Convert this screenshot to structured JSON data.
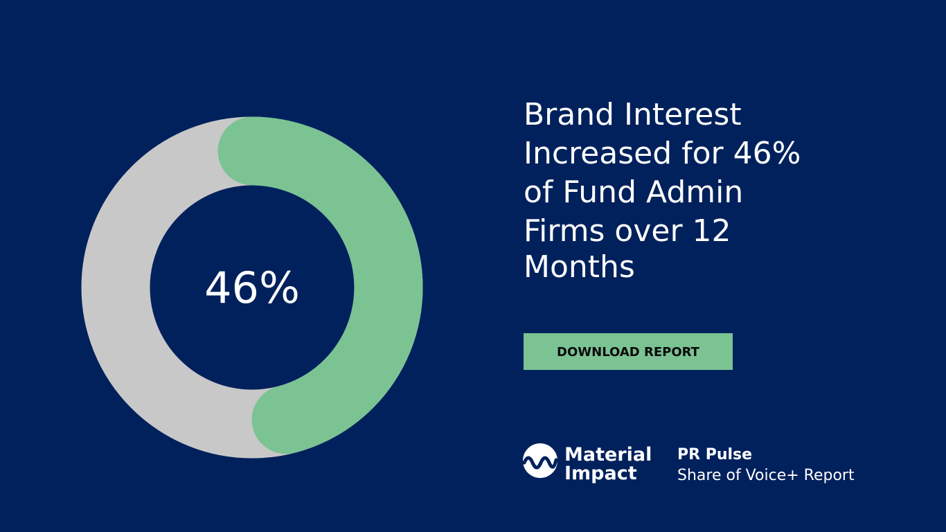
{
  "chart_data": {
    "type": "donut",
    "values": [
      46
    ],
    "value_labels": [
      "46%"
    ],
    "color": "#7bc393",
    "track_color": "#c8c8c8"
  },
  "headline": [
    "Brand Interest",
    "Increased for 46%",
    "of Fund Admin",
    "Firms over 12",
    "Months"
  ],
  "button": {
    "label": "DOWNLOAD REPORT"
  },
  "logo": {
    "line1": "Material",
    "line2": "Impact"
  },
  "footer": {
    "title": "PR Pulse",
    "subtitle": "Share of Voice+ Report"
  }
}
